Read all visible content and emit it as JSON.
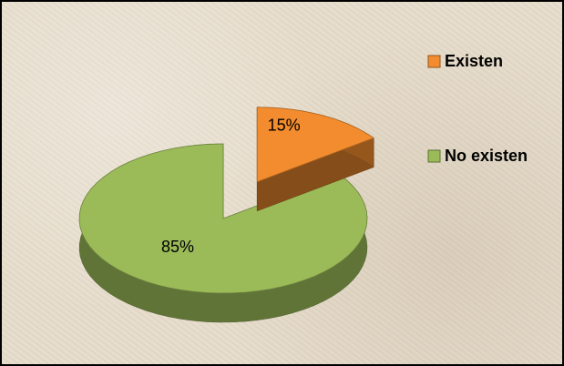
{
  "chart_data": {
    "type": "pie3d",
    "categories": [
      "Existen",
      "No existen"
    ],
    "values": [
      15,
      85
    ],
    "value_labels": [
      "15%",
      "85%"
    ],
    "colors": [
      "#f28c2e",
      "#9bbb59"
    ],
    "legend": "right"
  }
}
